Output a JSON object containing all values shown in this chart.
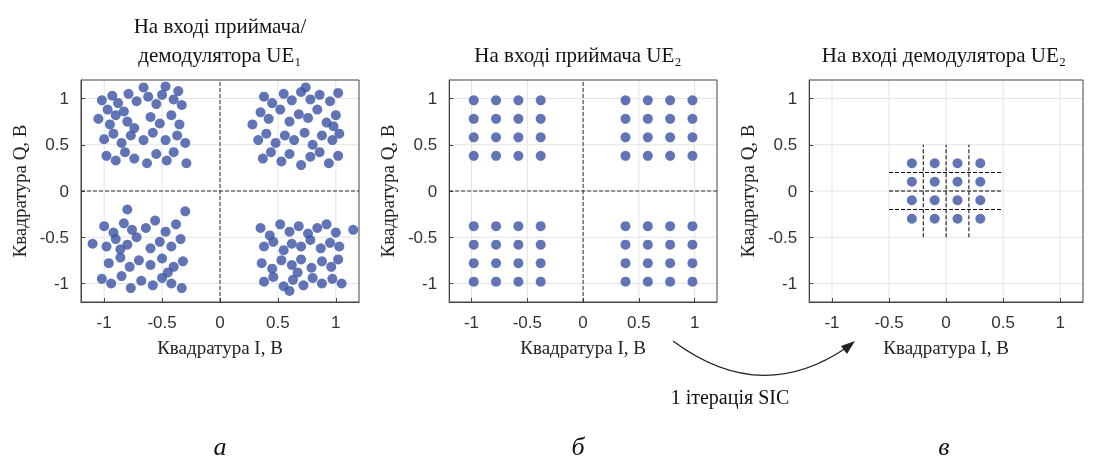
{
  "chart_data": [
    {
      "type": "scatter",
      "title": "На вході приймача/ демодулятора UE₁",
      "xlabel": "Квадратура I, В",
      "ylabel": "Квадратура Q, В",
      "xlim": [
        -1.2,
        1.2
      ],
      "ylim": [
        -1.2,
        1.2
      ],
      "xticks": [
        -1,
        -0.5,
        0,
        0.5,
        1
      ],
      "yticks": [
        -1,
        -0.5,
        0,
        0.5,
        1
      ],
      "grid": true,
      "marker": "circle",
      "annotations": [
        "а"
      ],
      "series": [
        {
          "type": "line",
          "color": "#333333",
          "line_style": "dashed",
          "marker": "none",
          "x": [
            0,
            0
          ],
          "values": [
            -1.2,
            1.2
          ]
        },
        {
          "type": "line",
          "color": "#333333",
          "line_style": "dashed",
          "marker": "none",
          "x": [
            -1.2,
            1.2
          ],
          "values": [
            0,
            0
          ]
        },
        {
          "color": "#3953a4",
          "x": [
            -1.02,
            -0.93,
            -0.97,
            -0.88,
            -0.79,
            -0.72,
            -0.83,
            -0.62,
            -0.55,
            -0.5,
            -0.4,
            -0.33,
            -0.36,
            -1.05,
            -0.95,
            -0.9,
            -0.8,
            -0.74,
            -0.6,
            -0.52,
            -0.42,
            -0.35,
            -1.0,
            -0.92,
            -0.85,
            -0.77,
            -0.66,
            -0.58,
            -0.47,
            -0.37,
            -0.3,
            -0.98,
            -0.9,
            -0.82,
            -0.74,
            -0.63,
            -0.55,
            -0.46,
            -0.4,
            -0.29,
            -0.66,
            -0.47
          ],
          "values": [
            0.98,
            1.03,
            0.88,
            0.95,
            1.05,
            0.97,
            0.86,
            1.02,
            0.94,
            1.04,
            0.99,
            0.93,
            1.08,
            0.78,
            0.72,
            0.82,
            0.75,
            0.68,
            0.8,
            0.73,
            0.82,
            0.72,
            0.56,
            0.62,
            0.52,
            0.6,
            0.55,
            0.63,
            0.55,
            0.6,
            0.52,
            0.38,
            0.33,
            0.42,
            0.35,
            0.3,
            0.4,
            0.33,
            0.42,
            0.3,
            1.12,
            1.13
          ]
        },
        {
          "color": "#3953a4",
          "x": [
            0.38,
            0.45,
            0.55,
            0.62,
            0.7,
            0.78,
            0.86,
            0.95,
            1.02,
            0.35,
            0.42,
            0.52,
            0.6,
            0.68,
            0.76,
            0.84,
            0.92,
            1.0,
            0.33,
            0.4,
            0.48,
            0.56,
            0.64,
            0.73,
            0.8,
            0.88,
            0.97,
            1.03,
            0.37,
            0.44,
            0.53,
            0.6,
            0.7,
            0.78,
            0.86,
            0.94,
            1.02,
            0.98,
            0.74,
            0.28
          ],
          "values": [
            1.02,
            0.95,
            1.05,
            0.98,
            1.07,
            0.99,
            1.04,
            0.97,
            1.06,
            0.85,
            0.78,
            0.88,
            0.75,
            0.83,
            0.79,
            0.88,
            0.74,
            0.82,
            0.55,
            0.62,
            0.52,
            0.6,
            0.55,
            0.63,
            0.5,
            0.6,
            0.55,
            0.62,
            0.35,
            0.42,
            0.32,
            0.4,
            0.28,
            0.37,
            0.42,
            0.3,
            0.38,
            0.7,
            1.12,
            0.72
          ]
        },
        {
          "color": "#3953a4",
          "x": [
            -1.0,
            -0.92,
            -0.83,
            -0.76,
            -0.64,
            -0.56,
            -0.47,
            -0.38,
            -0.3,
            -0.8,
            -1.1,
            -0.98,
            -0.9,
            -0.8,
            -0.72,
            -0.6,
            -0.52,
            -0.42,
            -0.34,
            -0.96,
            -0.86,
            -0.78,
            -0.7,
            -0.6,
            -0.5,
            -0.4,
            -0.32,
            -1.02,
            -0.94,
            -0.85,
            -0.77,
            -0.68,
            -0.58,
            -0.5,
            -0.42,
            -0.33,
            -0.86,
            -0.45
          ],
          "values": [
            -0.38,
            -0.45,
            -0.35,
            -0.42,
            -0.4,
            -0.32,
            -0.44,
            -0.36,
            -0.22,
            -0.2,
            -0.57,
            -0.6,
            -0.52,
            -0.58,
            -0.5,
            -0.62,
            -0.55,
            -0.6,
            -0.52,
            -0.78,
            -0.72,
            -0.82,
            -0.75,
            -0.8,
            -0.73,
            -0.82,
            -0.76,
            -0.95,
            -1.0,
            -0.92,
            -1.05,
            -0.97,
            -1.02,
            -0.94,
            -1.0,
            -1.05,
            -0.63,
            -0.88
          ]
        },
        {
          "color": "#3953a4",
          "x": [
            0.35,
            0.43,
            0.52,
            0.6,
            0.68,
            0.76,
            0.84,
            0.92,
            1.0,
            1.15,
            0.38,
            0.46,
            0.55,
            0.62,
            0.7,
            0.78,
            0.87,
            0.95,
            1.03,
            0.36,
            0.45,
            0.53,
            0.62,
            0.7,
            0.79,
            0.88,
            0.96,
            1.02,
            0.38,
            0.46,
            0.55,
            0.63,
            0.72,
            0.8,
            0.88,
            0.97,
            1.05,
            0.6,
            0.67
          ],
          "values": [
            -0.4,
            -0.48,
            -0.36,
            -0.44,
            -0.38,
            -0.46,
            -0.4,
            -0.36,
            -0.45,
            -0.42,
            -0.6,
            -0.55,
            -0.64,
            -0.57,
            -0.6,
            -0.53,
            -0.62,
            -0.56,
            -0.6,
            -0.78,
            -0.84,
            -0.75,
            -0.8,
            -0.74,
            -0.83,
            -0.76,
            -0.82,
            -0.74,
            -0.98,
            -0.93,
            -1.03,
            -0.96,
            -1.02,
            -0.94,
            -1.0,
            -0.95,
            -1.0,
            -1.08,
            -0.88
          ]
        }
      ]
    },
    {
      "type": "scatter",
      "title": "На вході приймача UE₂",
      "xlabel": "Квадратура I, В",
      "ylabel": "Квадратура Q, В",
      "xlim": [
        -1.2,
        1.2
      ],
      "ylim": [
        -1.2,
        1.2
      ],
      "xticks": [
        -1,
        -0.5,
        0,
        0.5,
        1
      ],
      "yticks": [
        -1,
        -0.5,
        0,
        0.5,
        1
      ],
      "grid": true,
      "marker": "circle",
      "annotations": [
        "б",
        "1 ітерація SIC"
      ],
      "series": [
        {
          "type": "line",
          "color": "#333333",
          "line_style": "dashed",
          "marker": "none",
          "x": [
            0,
            0
          ],
          "values": [
            -1.2,
            1.2
          ]
        },
        {
          "type": "line",
          "color": "#333333",
          "line_style": "dashed",
          "marker": "none",
          "x": [
            -1.2,
            1.2
          ],
          "values": [
            0,
            0
          ]
        },
        {
          "color": "#3953a4",
          "x": [
            -0.98,
            -0.78,
            -0.58,
            -0.38,
            -0.98,
            -0.78,
            -0.58,
            -0.38,
            -0.98,
            -0.78,
            -0.58,
            -0.38,
            -0.98,
            -0.78,
            -0.58,
            -0.38
          ],
          "values": [
            0.98,
            0.98,
            0.98,
            0.98,
            0.78,
            0.78,
            0.78,
            0.78,
            0.58,
            0.58,
            0.58,
            0.58,
            0.38,
            0.38,
            0.38,
            0.38
          ]
        },
        {
          "color": "#3953a4",
          "x": [
            0.38,
            0.58,
            0.78,
            0.98,
            0.38,
            0.58,
            0.78,
            0.98,
            0.38,
            0.58,
            0.78,
            0.98,
            0.38,
            0.58,
            0.78,
            0.98
          ],
          "values": [
            0.98,
            0.98,
            0.98,
            0.98,
            0.78,
            0.78,
            0.78,
            0.78,
            0.58,
            0.58,
            0.58,
            0.58,
            0.38,
            0.38,
            0.38,
            0.38
          ]
        },
        {
          "color": "#3953a4",
          "x": [
            -0.98,
            -0.78,
            -0.58,
            -0.38,
            -0.98,
            -0.78,
            -0.58,
            -0.38,
            -0.98,
            -0.78,
            -0.58,
            -0.38,
            -0.98,
            -0.78,
            -0.58,
            -0.38
          ],
          "values": [
            -0.38,
            -0.38,
            -0.38,
            -0.38,
            -0.58,
            -0.58,
            -0.58,
            -0.58,
            -0.78,
            -0.78,
            -0.78,
            -0.78,
            -0.98,
            -0.98,
            -0.98,
            -0.98
          ]
        },
        {
          "color": "#3953a4",
          "x": [
            0.38,
            0.58,
            0.78,
            0.98,
            0.38,
            0.58,
            0.78,
            0.98,
            0.38,
            0.58,
            0.78,
            0.98,
            0.38,
            0.58,
            0.78,
            0.98
          ],
          "values": [
            -0.38,
            -0.38,
            -0.38,
            -0.38,
            -0.58,
            -0.58,
            -0.58,
            -0.58,
            -0.78,
            -0.78,
            -0.78,
            -0.78,
            -0.98,
            -0.98,
            -0.98,
            -0.98
          ]
        }
      ]
    },
    {
      "type": "scatter",
      "title": "На вході демодулятора UE₂",
      "xlabel": "Квадратура I, В",
      "ylabel": "Квадратура Q, В",
      "xlim": [
        -1.2,
        1.2
      ],
      "ylim": [
        -1.2,
        1.2
      ],
      "xticks": [
        -1,
        -0.5,
        0,
        0.5,
        1
      ],
      "yticks": [
        -1,
        -0.5,
        0,
        0.5,
        1
      ],
      "grid": true,
      "marker": "circle",
      "annotations": [
        "в"
      ],
      "series": [
        {
          "color": "#3953a4",
          "x": [
            -0.3,
            -0.1,
            0.1,
            0.3,
            -0.3,
            -0.1,
            0.1,
            0.3,
            -0.3,
            -0.1,
            0.1,
            0.3,
            -0.3,
            -0.1,
            0.1,
            0.3
          ],
          "values": [
            0.3,
            0.3,
            0.3,
            0.3,
            0.1,
            0.1,
            0.1,
            0.1,
            -0.1,
            -0.1,
            -0.1,
            -0.1,
            -0.3,
            -0.3,
            -0.3,
            -0.3
          ]
        },
        {
          "type": "line",
          "color": "#000000",
          "line_style": "dashed",
          "marker": "none",
          "x": [
            -0.5,
            0.5
          ],
          "values": [
            0.2,
            0.2
          ]
        },
        {
          "type": "line",
          "color": "#000000",
          "line_style": "dashed",
          "marker": "none",
          "x": [
            -0.5,
            0.5
          ],
          "values": [
            0,
            0
          ]
        },
        {
          "type": "line",
          "color": "#000000",
          "line_style": "dashed",
          "marker": "none",
          "x": [
            -0.5,
            0.5
          ],
          "values": [
            -0.2,
            -0.2
          ]
        },
        {
          "type": "line",
          "color": "#000000",
          "line_style": "dashed",
          "marker": "none",
          "x": [
            -0.2,
            -0.2
          ],
          "values": [
            -0.5,
            0.5
          ]
        },
        {
          "type": "line",
          "color": "#000000",
          "line_style": "dashed",
          "marker": "none",
          "x": [
            0,
            0
          ],
          "values": [
            -0.5,
            0.5
          ]
        },
        {
          "type": "line",
          "color": "#000000",
          "line_style": "dashed",
          "marker": "none",
          "x": [
            0.2,
            0.2
          ],
          "values": [
            -0.5,
            0.5
          ]
        }
      ]
    }
  ]
}
